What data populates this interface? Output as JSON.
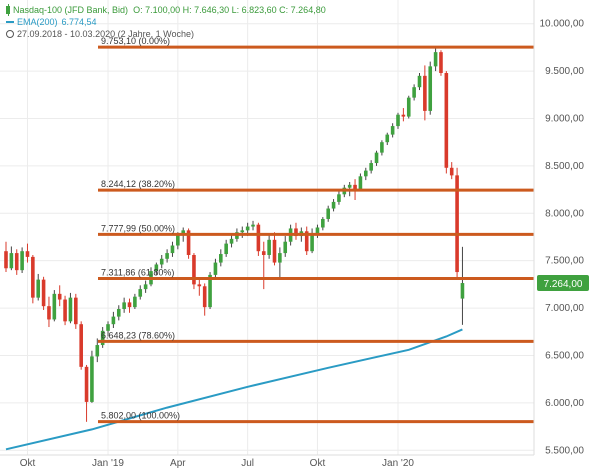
{
  "legend": {
    "instrument": "Nasdaq-100 (JFD Bank, Bid)",
    "ohlc": "O: 7.100,00  H: 7.646,30  L: 6.823,60  C: 7.264,80",
    "ema_label": "EMA(200)",
    "ema_value": "6.774,54",
    "period": "27.09.2018 - 10.03.2020 (2 Jahre, 1 Woche)"
  },
  "colors": {
    "up": "#3fa13f",
    "down": "#d93a2b",
    "fib_line": "#cc5a1e",
    "ema": "#2a9bc4",
    "price_tag": "#3fa13f"
  },
  "chart_data": {
    "type": "candlestick",
    "title": "",
    "ylim": [
      5450,
      10250
    ],
    "y_ticks": [
      5500,
      6000,
      6500,
      7000,
      7500,
      8000,
      8500,
      9000,
      9500,
      10000
    ],
    "y_tick_labels": [
      "5.500,00",
      "6.000,00",
      "6.500,00",
      "7.000,00",
      "7.500,00",
      "8.000,00",
      "8.500,00",
      "9.000,00",
      "9.500,00",
      "10.000,00"
    ],
    "x_labels": [
      "Okt",
      "Jan '19",
      "Apr",
      "Jul",
      "Okt",
      "Jan '20"
    ],
    "grid": true,
    "last_price": 7264.0,
    "last_price_label": "7.264,00",
    "fib_levels": [
      {
        "value": 9753.1,
        "label": "9.753,10 (0.00%)"
      },
      {
        "value": 8244.12,
        "label": "8.244,12 (38.20%)"
      },
      {
        "value": 7777.99,
        "label": "7.777,99 (50.00%)"
      },
      {
        "value": 7311.86,
        "label": "7.311,86 (61.80%)"
      },
      {
        "value": 6648.23,
        "label": "6.648,23 (78.60%)"
      },
      {
        "value": 5802.0,
        "label": "5.802,00 (100.00%)"
      }
    ],
    "candles": [
      {
        "o": 7600,
        "h": 7700,
        "l": 7380,
        "c": 7420
      },
      {
        "o": 7420,
        "h": 7650,
        "l": 7400,
        "c": 7580
      },
      {
        "o": 7580,
        "h": 7620,
        "l": 7350,
        "c": 7400
      },
      {
        "o": 7400,
        "h": 7640,
        "l": 7370,
        "c": 7600
      },
      {
        "o": 7600,
        "h": 7680,
        "l": 7480,
        "c": 7540
      },
      {
        "o": 7540,
        "h": 7560,
        "l": 7050,
        "c": 7110
      },
      {
        "o": 7110,
        "h": 7360,
        "l": 7080,
        "c": 7300
      },
      {
        "o": 7300,
        "h": 7330,
        "l": 6980,
        "c": 7020
      },
      {
        "o": 7020,
        "h": 7120,
        "l": 6800,
        "c": 6880
      },
      {
        "o": 6880,
        "h": 7190,
        "l": 6860,
        "c": 7150
      },
      {
        "o": 7150,
        "h": 7240,
        "l": 7020,
        "c": 7090
      },
      {
        "o": 7090,
        "h": 7130,
        "l": 6820,
        "c": 6860
      },
      {
        "o": 6860,
        "h": 7160,
        "l": 6840,
        "c": 7110
      },
      {
        "o": 7110,
        "h": 7150,
        "l": 6780,
        "c": 6830
      },
      {
        "o": 6830,
        "h": 6860,
        "l": 6350,
        "c": 6380
      },
      {
        "o": 6380,
        "h": 6400,
        "l": 5800,
        "c": 6010
      },
      {
        "o": 6010,
        "h": 6550,
        "l": 6000,
        "c": 6490
      },
      {
        "o": 6490,
        "h": 6680,
        "l": 6430,
        "c": 6610
      },
      {
        "o": 6610,
        "h": 6800,
        "l": 6580,
        "c": 6760
      },
      {
        "o": 6760,
        "h": 6860,
        "l": 6700,
        "c": 6830
      },
      {
        "o": 6830,
        "h": 6960,
        "l": 6790,
        "c": 6910
      },
      {
        "o": 6910,
        "h": 7030,
        "l": 6870,
        "c": 6990
      },
      {
        "o": 6990,
        "h": 7110,
        "l": 6950,
        "c": 7060
      },
      {
        "o": 7060,
        "h": 7100,
        "l": 6950,
        "c": 7010
      },
      {
        "o": 7010,
        "h": 7150,
        "l": 6990,
        "c": 7120
      },
      {
        "o": 7120,
        "h": 7240,
        "l": 7090,
        "c": 7200
      },
      {
        "o": 7200,
        "h": 7290,
        "l": 7160,
        "c": 7250
      },
      {
        "o": 7250,
        "h": 7430,
        "l": 7230,
        "c": 7390
      },
      {
        "o": 7390,
        "h": 7480,
        "l": 7350,
        "c": 7460
      },
      {
        "o": 7460,
        "h": 7560,
        "l": 7420,
        "c": 7520
      },
      {
        "o": 7520,
        "h": 7620,
        "l": 7480,
        "c": 7580
      },
      {
        "o": 7580,
        "h": 7700,
        "l": 7540,
        "c": 7660
      },
      {
        "o": 7660,
        "h": 7800,
        "l": 7620,
        "c": 7770
      },
      {
        "o": 7770,
        "h": 7850,
        "l": 7700,
        "c": 7820
      },
      {
        "o": 7820,
        "h": 7840,
        "l": 7520,
        "c": 7560
      },
      {
        "o": 7560,
        "h": 7580,
        "l": 7200,
        "c": 7250
      },
      {
        "o": 7250,
        "h": 7310,
        "l": 7130,
        "c": 7230
      },
      {
        "o": 7230,
        "h": 7260,
        "l": 6920,
        "c": 7010
      },
      {
        "o": 7010,
        "h": 7380,
        "l": 6990,
        "c": 7350
      },
      {
        "o": 7350,
        "h": 7520,
        "l": 7320,
        "c": 7480
      },
      {
        "o": 7480,
        "h": 7620,
        "l": 7440,
        "c": 7570
      },
      {
        "o": 7570,
        "h": 7720,
        "l": 7540,
        "c": 7680
      },
      {
        "o": 7680,
        "h": 7780,
        "l": 7640,
        "c": 7730
      },
      {
        "o": 7730,
        "h": 7840,
        "l": 7700,
        "c": 7800
      },
      {
        "o": 7800,
        "h": 7860,
        "l": 7740,
        "c": 7820
      },
      {
        "o": 7820,
        "h": 7900,
        "l": 7760,
        "c": 7860
      },
      {
        "o": 7860,
        "h": 7920,
        "l": 7820,
        "c": 7880
      },
      {
        "o": 7880,
        "h": 7900,
        "l": 7550,
        "c": 7600
      },
      {
        "o": 7600,
        "h": 7700,
        "l": 7200,
        "c": 7560
      },
      {
        "o": 7560,
        "h": 7780,
        "l": 7520,
        "c": 7720
      },
      {
        "o": 7720,
        "h": 7800,
        "l": 7450,
        "c": 7480
      },
      {
        "o": 7480,
        "h": 7640,
        "l": 7300,
        "c": 7580
      },
      {
        "o": 7580,
        "h": 7760,
        "l": 7540,
        "c": 7700
      },
      {
        "o": 7700,
        "h": 7880,
        "l": 7660,
        "c": 7840
      },
      {
        "o": 7840,
        "h": 7900,
        "l": 7720,
        "c": 7760
      },
      {
        "o": 7760,
        "h": 7850,
        "l": 7700,
        "c": 7810
      },
      {
        "o": 7810,
        "h": 7860,
        "l": 7560,
        "c": 7600
      },
      {
        "o": 7600,
        "h": 7840,
        "l": 7580,
        "c": 7790
      },
      {
        "o": 7790,
        "h": 7880,
        "l": 7740,
        "c": 7850
      },
      {
        "o": 7850,
        "h": 7960,
        "l": 7820,
        "c": 7940
      },
      {
        "o": 7940,
        "h": 8080,
        "l": 7910,
        "c": 8050
      },
      {
        "o": 8050,
        "h": 8150,
        "l": 8020,
        "c": 8120
      },
      {
        "o": 8120,
        "h": 8240,
        "l": 8090,
        "c": 8200
      },
      {
        "o": 8200,
        "h": 8300,
        "l": 8170,
        "c": 8270
      },
      {
        "o": 8270,
        "h": 8330,
        "l": 8180,
        "c": 8300
      },
      {
        "o": 8300,
        "h": 8360,
        "l": 8140,
        "c": 8250
      },
      {
        "o": 8250,
        "h": 8420,
        "l": 8230,
        "c": 8390
      },
      {
        "o": 8390,
        "h": 8480,
        "l": 8350,
        "c": 8450
      },
      {
        "o": 8450,
        "h": 8560,
        "l": 8420,
        "c": 8530
      },
      {
        "o": 8530,
        "h": 8660,
        "l": 8500,
        "c": 8640
      },
      {
        "o": 8640,
        "h": 8770,
        "l": 8610,
        "c": 8750
      },
      {
        "o": 8750,
        "h": 8850,
        "l": 8720,
        "c": 8830
      },
      {
        "o": 8830,
        "h": 8950,
        "l": 8800,
        "c": 8920
      },
      {
        "o": 8920,
        "h": 9060,
        "l": 8890,
        "c": 9040
      },
      {
        "o": 9040,
        "h": 9110,
        "l": 8970,
        "c": 9020
      },
      {
        "o": 9020,
        "h": 9240,
        "l": 9000,
        "c": 9220
      },
      {
        "o": 9220,
        "h": 9360,
        "l": 9190,
        "c": 9330
      },
      {
        "o": 9330,
        "h": 9480,
        "l": 9300,
        "c": 9450
      },
      {
        "o": 9450,
        "h": 9560,
        "l": 8980,
        "c": 9080
      },
      {
        "o": 9080,
        "h": 9600,
        "l": 9040,
        "c": 9550
      },
      {
        "o": 9550,
        "h": 9753,
        "l": 9500,
        "c": 9700
      },
      {
        "o": 9700,
        "h": 9720,
        "l": 9450,
        "c": 9480
      },
      {
        "o": 9480,
        "h": 9500,
        "l": 8420,
        "c": 8480
      },
      {
        "o": 8480,
        "h": 8540,
        "l": 8360,
        "c": 8400
      },
      {
        "o": 8400,
        "h": 8480,
        "l": 7300,
        "c": 7380
      },
      {
        "o": 7100,
        "h": 7646,
        "l": 6823,
        "c": 7264
      }
    ],
    "ema": [
      {
        "i": 0,
        "v": 5510
      },
      {
        "i": 16,
        "v": 5720
      },
      {
        "i": 30,
        "v": 5950
      },
      {
        "i": 45,
        "v": 6170
      },
      {
        "i": 60,
        "v": 6370
      },
      {
        "i": 75,
        "v": 6560
      },
      {
        "i": 82,
        "v": 6700
      },
      {
        "i": 85,
        "v": 6775
      }
    ]
  }
}
